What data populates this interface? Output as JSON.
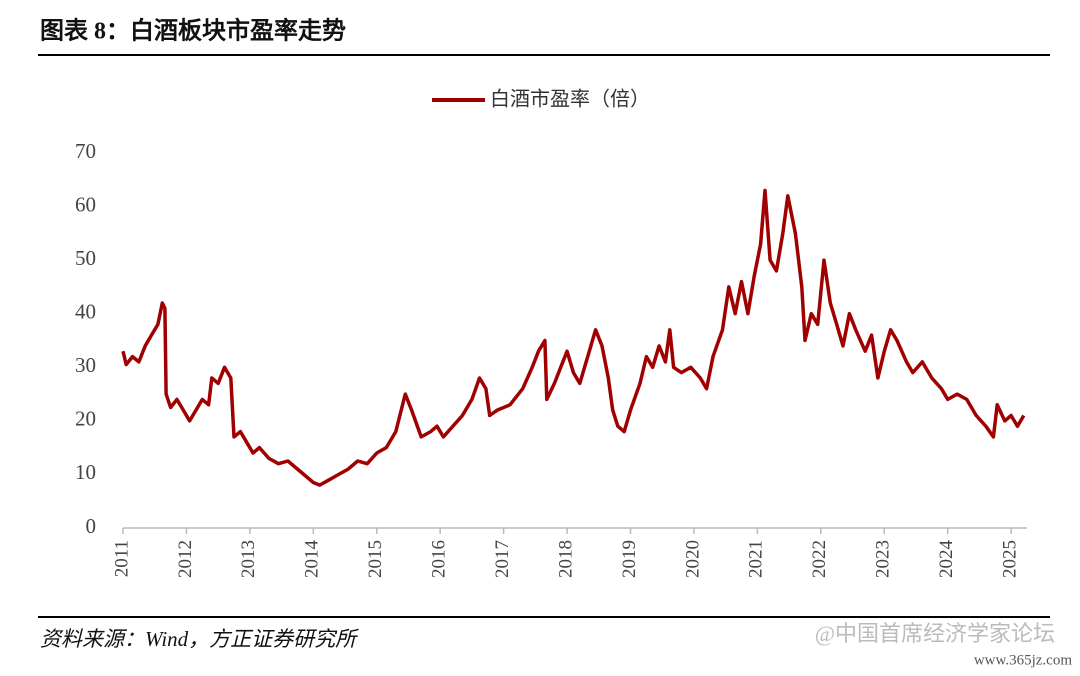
{
  "chart_data": {
    "type": "line",
    "title": "图表 8：白酒板块市盈率走势",
    "source": "资料来源：Wind，方正证券研究所",
    "watermark": "@中国首席经济学家论坛",
    "watermark_url": "www.365jz.com",
    "x": [
      2011.0,
      2011.05,
      2011.15,
      2011.25,
      2011.35,
      2011.45,
      2011.55,
      2011.62,
      2011.66,
      2011.68,
      2011.75,
      2011.85,
      2011.95,
      2012.05,
      2012.15,
      2012.25,
      2012.35,
      2012.4,
      2012.5,
      2012.6,
      2012.7,
      2012.75,
      2012.85,
      2012.95,
      2013.05,
      2013.15,
      2013.3,
      2013.45,
      2013.6,
      2013.75,
      2013.9,
      2014.0,
      2014.1,
      2014.25,
      2014.4,
      2014.55,
      2014.7,
      2014.85,
      2015.0,
      2015.15,
      2015.3,
      2015.45,
      2015.55,
      2015.7,
      2015.85,
      2015.95,
      2016.05,
      2016.2,
      2016.35,
      2016.5,
      2016.62,
      2016.72,
      2016.78,
      2016.9,
      2017.1,
      2017.3,
      2017.45,
      2017.55,
      2017.65,
      2017.68,
      2017.8,
      2017.9,
      2018.0,
      2018.1,
      2018.2,
      2018.35,
      2018.45,
      2018.55,
      2018.65,
      2018.72,
      2018.8,
      2018.9,
      2019.0,
      2019.15,
      2019.25,
      2019.35,
      2019.45,
      2019.55,
      2019.62,
      2019.68,
      2019.8,
      2019.95,
      2020.1,
      2020.2,
      2020.3,
      2020.45,
      2020.55,
      2020.65,
      2020.75,
      2020.85,
      2020.95,
      2021.05,
      2021.12,
      2021.2,
      2021.3,
      2021.4,
      2021.48,
      2021.6,
      2021.7,
      2021.75,
      2021.85,
      2021.95,
      2022.05,
      2022.15,
      2022.25,
      2022.35,
      2022.45,
      2022.55,
      2022.7,
      2022.8,
      2022.9,
      2023.0,
      2023.1,
      2023.2,
      2023.35,
      2023.45,
      2023.6,
      2023.75,
      2023.9,
      2024.0,
      2024.15,
      2024.3,
      2024.45,
      2024.6,
      2024.72,
      2024.78,
      2024.9,
      2025.0,
      2025.1,
      2025.2
    ],
    "series": [
      {
        "name": "白酒市盈率（倍）",
        "color": "#a00000",
        "values": [
          33,
          30.5,
          32,
          31,
          34,
          36,
          38,
          42,
          41,
          25,
          22.5,
          24,
          22,
          20,
          22,
          24,
          23,
          28,
          27,
          30,
          28,
          17,
          18,
          16,
          14,
          15,
          13,
          12,
          12.5,
          11,
          9.5,
          8.5,
          8,
          9,
          10,
          11,
          12.5,
          12,
          14,
          15,
          18,
          25,
          22,
          17,
          18,
          19,
          17,
          19,
          21,
          24,
          28,
          26,
          21,
          22,
          23,
          26,
          30,
          33,
          35,
          24,
          27,
          30,
          33,
          29,
          27,
          33,
          37,
          34,
          28,
          22,
          19,
          18,
          22,
          27,
          32,
          30,
          34,
          31,
          37,
          30,
          29,
          30,
          28,
          26,
          32,
          37,
          45,
          40,
          46,
          40,
          47,
          53,
          63,
          50,
          48,
          55,
          62,
          55,
          45,
          35,
          40,
          38,
          50,
          42,
          38,
          34,
          40,
          37,
          33,
          36,
          28,
          33,
          37,
          35,
          31,
          29,
          31,
          28,
          26,
          24,
          25,
          24,
          21,
          19,
          17,
          23,
          20,
          21,
          19,
          21
        ]
      }
    ],
    "xlim": [
      2011,
      2025.25
    ],
    "xticks": [
      2011,
      2012,
      2013,
      2014,
      2015,
      2016,
      2017,
      2018,
      2019,
      2020,
      2021,
      2022,
      2023,
      2024,
      2025
    ],
    "ylim": [
      0,
      70
    ],
    "yticks": [
      0,
      10,
      20,
      30,
      40,
      50,
      60,
      70
    ],
    "legend": "top"
  }
}
